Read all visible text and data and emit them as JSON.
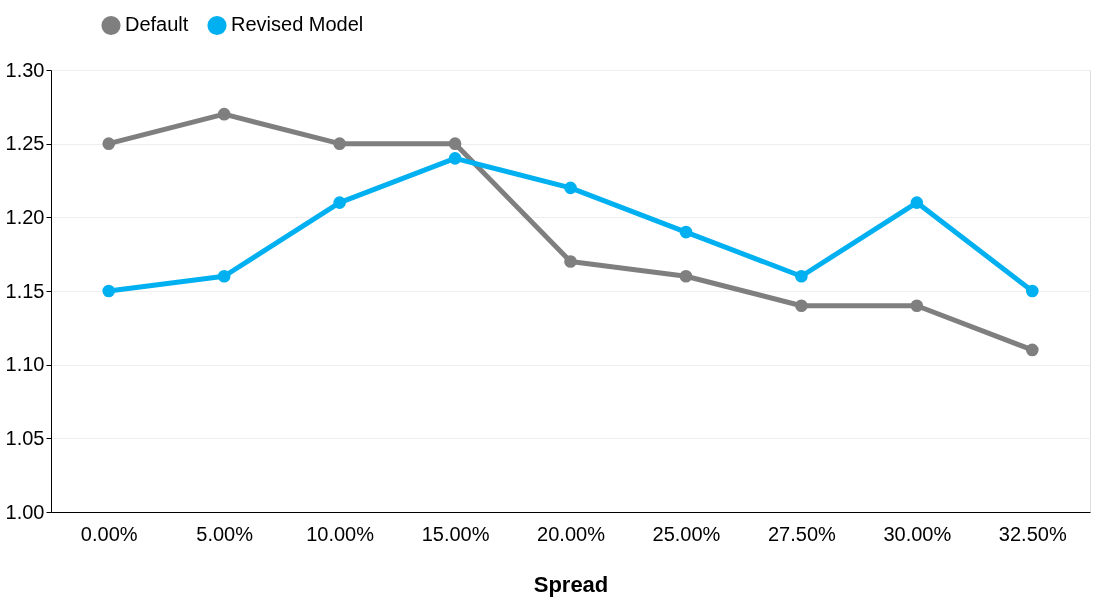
{
  "chart_data": {
    "type": "line",
    "xlabel": "Spread",
    "categories": [
      "0.00%",
      "5.00%",
      "10.00%",
      "15.00%",
      "20.00%",
      "25.00%",
      "27.50%",
      "30.00%",
      "32.50%"
    ],
    "series": [
      {
        "name": "Default",
        "color": "#7f7f7f",
        "values": [
          1.25,
          1.27,
          1.25,
          1.25,
          1.17,
          1.16,
          1.14,
          1.14,
          1.11
        ]
      },
      {
        "name": "Revised Model",
        "color": "#00b0f0",
        "values": [
          1.15,
          1.16,
          1.21,
          1.24,
          1.22,
          1.19,
          1.16,
          1.21,
          1.15
        ]
      }
    ],
    "ylim": [
      1.0,
      1.3
    ],
    "yticks": [
      {
        "value": 1.0,
        "label": "1.00"
      },
      {
        "value": 1.05,
        "label": "1.05"
      },
      {
        "value": 1.1,
        "label": "1.10"
      },
      {
        "value": 1.15,
        "label": "1.15"
      },
      {
        "value": 1.2,
        "label": "1.20"
      },
      {
        "value": 1.25,
        "label": "1.25"
      },
      {
        "value": 1.3,
        "label": "1.30"
      }
    ],
    "grid": "y",
    "legend": "top left",
    "marker": "circle",
    "line_style": "solid"
  }
}
